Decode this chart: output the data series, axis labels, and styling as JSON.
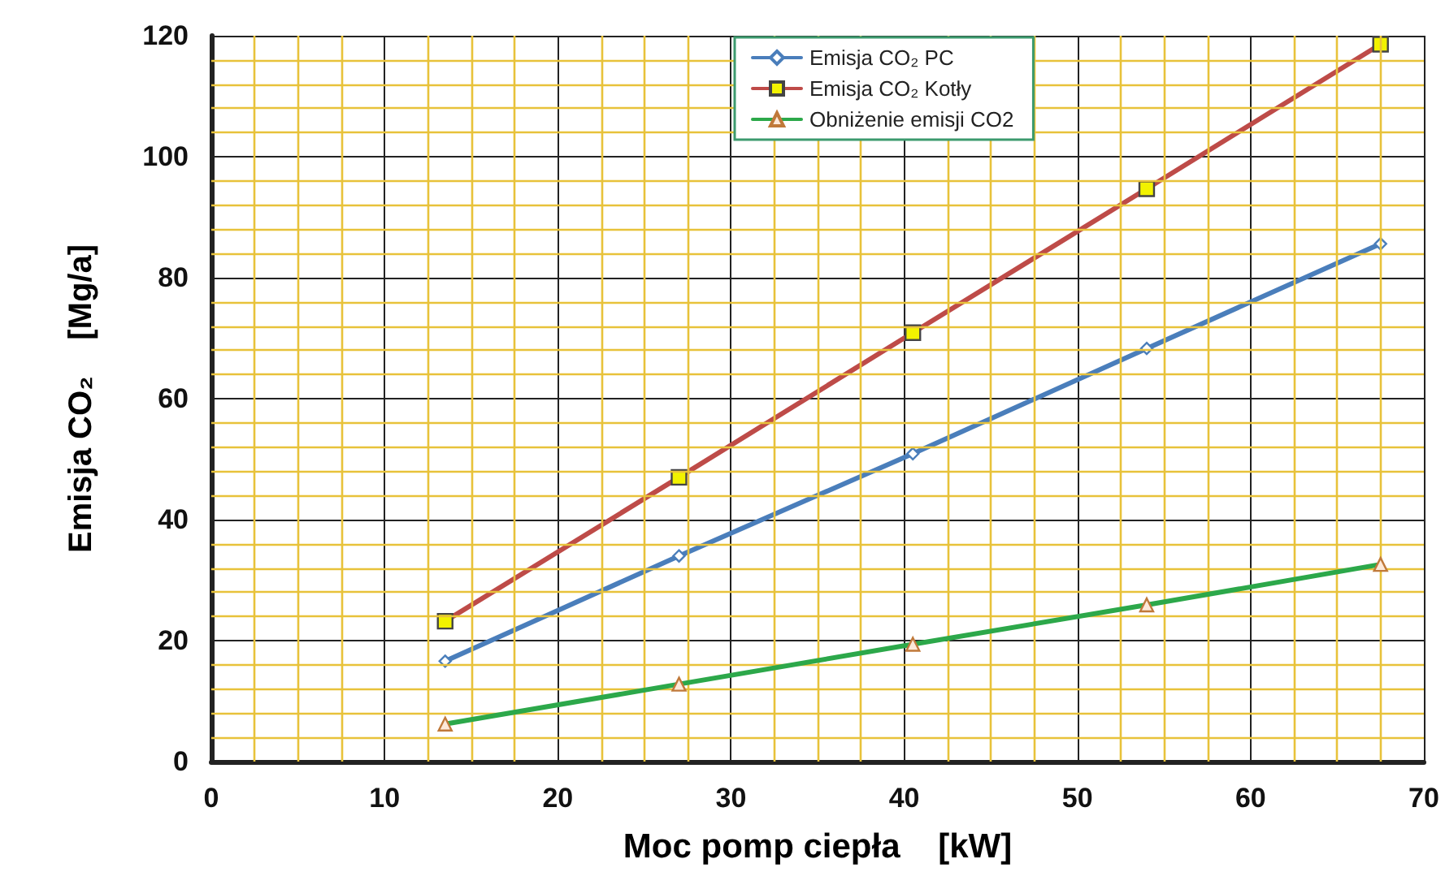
{
  "chart_data": {
    "type": "line",
    "xlabel": "Moc pomp ciepła    [kW]",
    "ylabel": "Emisja CO₂    [Mg/a]",
    "x": [
      13.5,
      27,
      40.5,
      54,
      67.5
    ],
    "series": [
      {
        "name": "Emisja CO₂ PC",
        "color": "#4a7ebb",
        "marker": "diamond",
        "values": [
          16.6,
          34,
          50.9,
          68.3,
          85.6
        ]
      },
      {
        "name": "Emisja CO₂ Kotły",
        "color": "#be4b48",
        "marker": "square",
        "values": [
          23.2,
          47,
          70.9,
          94.7,
          118.6
        ]
      },
      {
        "name": "Obniżenie emisji CO2",
        "color": "#2ca84a",
        "marker": "triangle",
        "values": [
          6.2,
          12.8,
          19.4,
          25.9,
          32.6
        ]
      }
    ],
    "xlim": [
      0,
      70
    ],
    "xticks": [
      0,
      {
        "value": 2.5,
        "label": null
      },
      {
        "value": 5,
        "label": null
      },
      {
        "value": 7.5,
        "label": null
      },
      10,
      {
        "value": 12.5,
        "label": null
      },
      {
        "value": 15,
        "label": null
      },
      {
        "value": 17.5,
        "label": null
      },
      20,
      {
        "value": 22.5,
        "label": null
      },
      {
        "value": 25,
        "label": null
      },
      {
        "value": 27.5,
        "label": null
      },
      30,
      {
        "value": 32.5,
        "label": null
      },
      {
        "value": 35,
        "label": null
      },
      {
        "value": 37.5,
        "label": null
      },
      40,
      {
        "value": 42.5,
        "label": null
      },
      {
        "value": 45,
        "label": null
      },
      {
        "value": 47.5,
        "label": null
      },
      50,
      {
        "value": 52.5,
        "label": null
      },
      {
        "value": 55,
        "label": null
      },
      {
        "value": 57.5,
        "label": null
      },
      60,
      {
        "value": 62.5,
        "label": null
      },
      {
        "value": 65,
        "label": null
      },
      {
        "value": 67.5,
        "label": null
      },
      70
    ],
    "ylim": [
      0,
      120
    ],
    "yticks": [
      0,
      {
        "value": 4,
        "label": null
      },
      {
        "value": 8,
        "label": null
      },
      {
        "value": 12,
        "label": null
      },
      {
        "value": 16,
        "label": null
      },
      20,
      {
        "value": 24,
        "label": null
      },
      {
        "value": 28,
        "label": null
      },
      {
        "value": 32,
        "label": null
      },
      {
        "value": 36,
        "label": null
      },
      40,
      {
        "value": 44,
        "label": null
      },
      {
        "value": 48,
        "label": null
      },
      {
        "value": 52,
        "label": null
      },
      {
        "value": 56,
        "label": null
      },
      60,
      {
        "value": 64,
        "label": null
      },
      {
        "value": 68,
        "label": null
      },
      {
        "value": 72,
        "label": null
      },
      {
        "value": 76,
        "label": null
      },
      80,
      {
        "value": 84,
        "label": null
      },
      {
        "value": 88,
        "label": null
      },
      {
        "value": 92,
        "label": null
      },
      {
        "value": 96,
        "label": null
      },
      100,
      {
        "value": 104,
        "label": null
      },
      {
        "value": 108,
        "label": null
      },
      {
        "value": 112,
        "label": null
      },
      {
        "value": 116,
        "label": null
      },
      120
    ],
    "grid": true,
    "legend": "top right",
    "line_style": "solid"
  }
}
